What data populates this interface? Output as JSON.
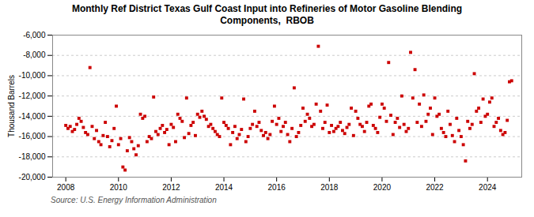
{
  "chart_data": {
    "type": "scatter",
    "title": "Monthly Ref District Texas Gulf Coast Input into Refineries of Motor Gasoline Blending\nComponents,  RBOB",
    "ylabel": "Thousand Barrels",
    "source": "Source: U.S. Energy Information Administration",
    "color": "#cc0000",
    "marker": "square",
    "grid": "y",
    "xlim": [
      2007.5,
      2025.3
    ],
    "xticks": [
      2008,
      2010,
      2012,
      2014,
      2016,
      2018,
      2020,
      2022,
      2024
    ],
    "ylim": [
      -20000,
      -6000
    ],
    "yticks": [
      {
        "value": -20000,
        "label": "-20,000"
      },
      {
        "value": -18000,
        "label": "-18,000"
      },
      {
        "value": -16000,
        "label": "-16,000"
      },
      {
        "value": -14000,
        "label": "-14,000"
      },
      {
        "value": -12000,
        "label": "-12,000"
      },
      {
        "value": -10000,
        "label": "-10,000"
      },
      {
        "value": -8000,
        "label": "-8,000"
      },
      {
        "value": -6000,
        "label": "-6,000"
      }
    ],
    "x": [
      2008.0,
      2008.083,
      2008.167,
      2008.25,
      2008.333,
      2008.417,
      2008.5,
      2008.583,
      2008.667,
      2008.75,
      2008.833,
      2008.917,
      2009.0,
      2009.083,
      2009.167,
      2009.25,
      2009.333,
      2009.417,
      2009.5,
      2009.583,
      2009.667,
      2009.75,
      2009.833,
      2009.917,
      2010.0,
      2010.083,
      2010.167,
      2010.25,
      2010.333,
      2010.417,
      2010.5,
      2010.583,
      2010.667,
      2010.75,
      2010.833,
      2010.917,
      2011.0,
      2011.083,
      2011.167,
      2011.25,
      2011.333,
      2011.417,
      2011.5,
      2011.583,
      2011.667,
      2011.75,
      2011.833,
      2011.917,
      2012.0,
      2012.083,
      2012.167,
      2012.25,
      2012.333,
      2012.417,
      2012.5,
      2012.583,
      2012.667,
      2012.75,
      2012.833,
      2012.917,
      2013.0,
      2013.083,
      2013.167,
      2013.25,
      2013.333,
      2013.417,
      2013.5,
      2013.583,
      2013.667,
      2013.75,
      2013.833,
      2013.917,
      2014.0,
      2014.083,
      2014.167,
      2014.25,
      2014.333,
      2014.417,
      2014.5,
      2014.583,
      2014.667,
      2014.75,
      2014.833,
      2014.917,
      2015.0,
      2015.083,
      2015.167,
      2015.25,
      2015.333,
      2015.417,
      2015.5,
      2015.583,
      2015.667,
      2015.75,
      2015.833,
      2015.917,
      2016.0,
      2016.083,
      2016.167,
      2016.25,
      2016.333,
      2016.417,
      2016.5,
      2016.583,
      2016.667,
      2016.75,
      2016.833,
      2016.917,
      2017.0,
      2017.083,
      2017.167,
      2017.25,
      2017.333,
      2017.417,
      2017.5,
      2017.583,
      2017.667,
      2017.75,
      2017.833,
      2017.917,
      2018.0,
      2018.083,
      2018.167,
      2018.25,
      2018.333,
      2018.417,
      2018.5,
      2018.583,
      2018.667,
      2018.75,
      2018.833,
      2018.917,
      2019.0,
      2019.083,
      2019.167,
      2019.25,
      2019.333,
      2019.417,
      2019.5,
      2019.583,
      2019.667,
      2019.75,
      2019.833,
      2019.917,
      2020.0,
      2020.083,
      2020.167,
      2020.25,
      2020.333,
      2020.417,
      2020.5,
      2020.583,
      2020.667,
      2020.75,
      2020.833,
      2020.917,
      2021.0,
      2021.083,
      2021.167,
      2021.25,
      2021.333,
      2021.417,
      2021.5,
      2021.583,
      2021.667,
      2021.75,
      2021.833,
      2021.917,
      2022.0,
      2022.083,
      2022.167,
      2022.25,
      2022.333,
      2022.417,
      2022.5,
      2022.583,
      2022.667,
      2022.75,
      2022.833,
      2022.917,
      2023.0,
      2023.083,
      2023.167,
      2023.25,
      2023.333,
      2023.417,
      2023.5,
      2023.583,
      2023.667,
      2023.75,
      2023.833,
      2023.917,
      2024.0,
      2024.083,
      2024.167,
      2024.25,
      2024.333,
      2024.417,
      2024.5,
      2024.583,
      2024.667,
      2024.75,
      2024.833,
      2024.917
    ],
    "values": [
      -14900,
      -15200,
      -15000,
      -15500,
      -15300,
      -14800,
      -14200,
      -14500,
      -15100,
      -15600,
      -15800,
      -9200,
      -15000,
      -16200,
      -15400,
      -16500,
      -16800,
      -15900,
      -14600,
      -16000,
      -17000,
      -16400,
      -15200,
      -13000,
      -16800,
      -16200,
      -19000,
      -19300,
      -17400,
      -16100,
      -16500,
      -17200,
      -17800,
      -16900,
      -13800,
      -14200,
      -14000,
      -16500,
      -16000,
      -16200,
      -12100,
      -15500,
      -15800,
      -15200,
      -14900,
      -15600,
      -15300,
      -16800,
      -14800,
      -15100,
      -16500,
      -13800,
      -14200,
      -14500,
      -16100,
      -12200,
      -15700,
      -14900,
      -14600,
      -15900,
      -13800,
      -14100,
      -13500,
      -14000,
      -14300,
      -15000,
      -14800,
      -15200,
      -15500,
      -15800,
      -16000,
      -12200,
      -14600,
      -14900,
      -15200,
      -16800,
      -15600,
      -15000,
      -16200,
      -15800,
      -15300,
      -12300,
      -16500,
      -16000,
      -15200,
      -14800,
      -13500,
      -15000,
      -14600,
      -15400,
      -15900,
      -15600,
      -16200,
      -15800,
      -14500,
      -13000,
      -14800,
      -14200,
      -15500,
      -15000,
      -14600,
      -15800,
      -16500,
      -15200,
      -11200,
      -16000,
      -15600,
      -14900,
      -13200,
      -14500,
      -13800,
      -14200,
      -15000,
      -14800,
      -12800,
      -7100,
      -13500,
      -15200,
      -14600,
      -12900,
      -15600,
      -14900,
      -15500,
      -15200,
      -15000,
      -14600,
      -15400,
      -15700,
      -15100,
      -14800,
      -13200,
      -15900,
      -13500,
      -14200,
      -14800,
      -15000,
      -15500,
      -14600,
      -13000,
      -12800,
      -14900,
      -15200,
      -15600,
      -14100,
      -12800,
      -13200,
      -14500,
      -8700,
      -13900,
      -15800,
      -14600,
      -14200,
      -15100,
      -12000,
      -14800,
      -15500,
      -15200,
      -7700,
      -12200,
      -9400,
      -14600,
      -12800,
      -15000,
      -11900,
      -14500,
      -13800,
      -13200,
      -15800,
      -12200,
      -14000,
      -13800,
      -15200,
      -15600,
      -16000,
      -13500,
      -14800,
      -15900,
      -16500,
      -14200,
      -15400,
      -16000,
      -16800,
      -18400,
      -14500,
      -15200,
      -14800,
      -9800,
      -13500,
      -13200,
      -14600,
      -12300,
      -14000,
      -13800,
      -12600,
      -12200,
      -15000,
      -14600,
      -14200,
      -15400,
      -15800,
      -15600,
      -14400,
      -10600,
      -10500
    ]
  }
}
